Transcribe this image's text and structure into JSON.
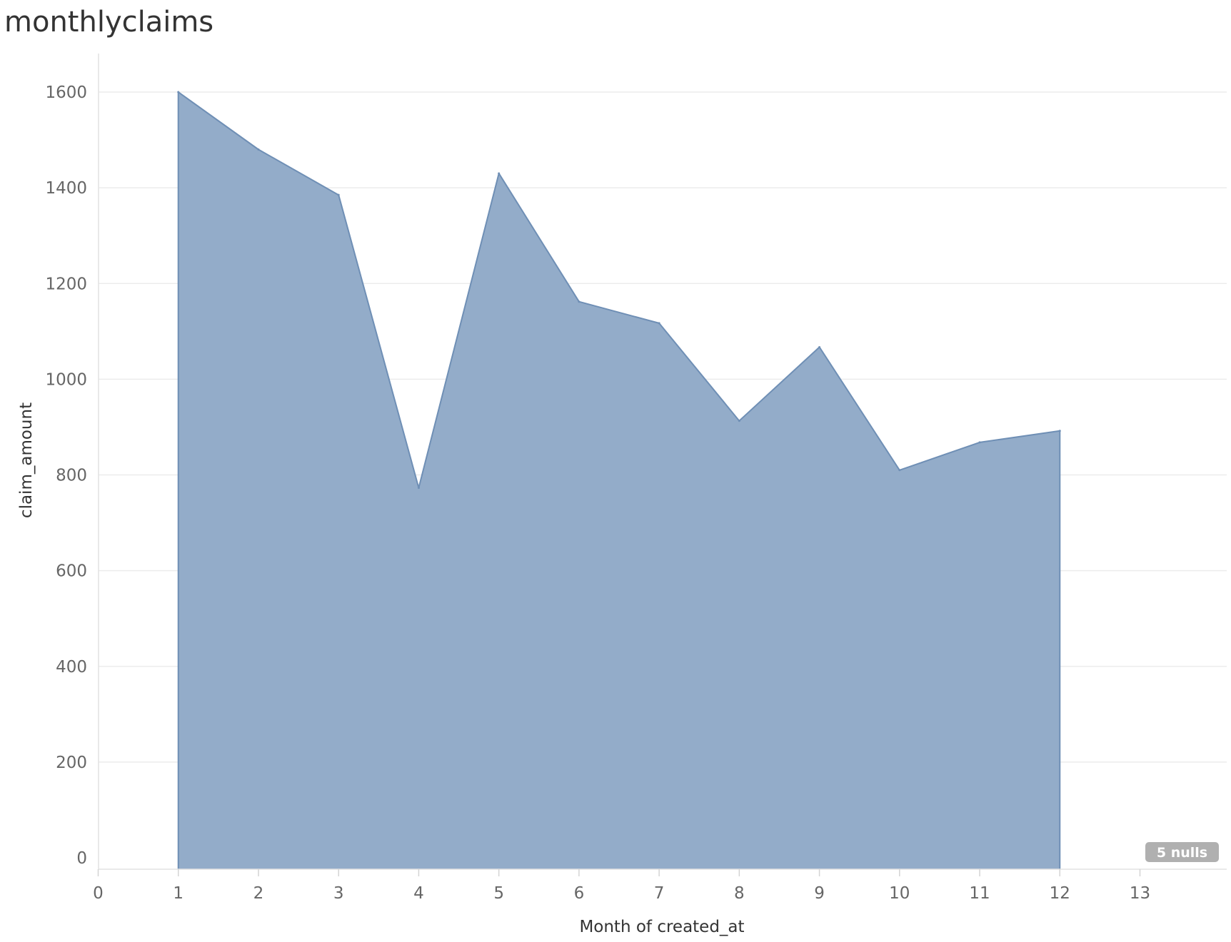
{
  "chart_data": {
    "type": "area",
    "title": "monthlyclaims",
    "xlabel": "Month of created_at",
    "ylabel": "claim_amount",
    "x": [
      1,
      2,
      3,
      4,
      5,
      6,
      7,
      8,
      9,
      10,
      11,
      12
    ],
    "series": [
      {
        "values": [
          1600,
          1480,
          1385,
          773,
          1430,
          1162,
          1117,
          913,
          1067,
          810,
          868,
          892
        ]
      }
    ],
    "xlim": [
      0,
      13
    ],
    "ylim": [
      0,
      1600
    ],
    "x_ticks": [
      "0",
      "1",
      "2",
      "3",
      "4",
      "5",
      "6",
      "7",
      "8",
      "9",
      "10",
      "11",
      "12",
      "13"
    ],
    "y_ticks": [
      "0",
      "200",
      "400",
      "600",
      "800",
      "1000",
      "1200",
      "1400",
      "1600"
    ],
    "grid": "horizontal",
    "null_indicator": "5 nulls",
    "colors": {
      "area_fill": "#93acc9",
      "area_line": "#6f8fb5",
      "null_badge": "#b0b0b0"
    }
  }
}
